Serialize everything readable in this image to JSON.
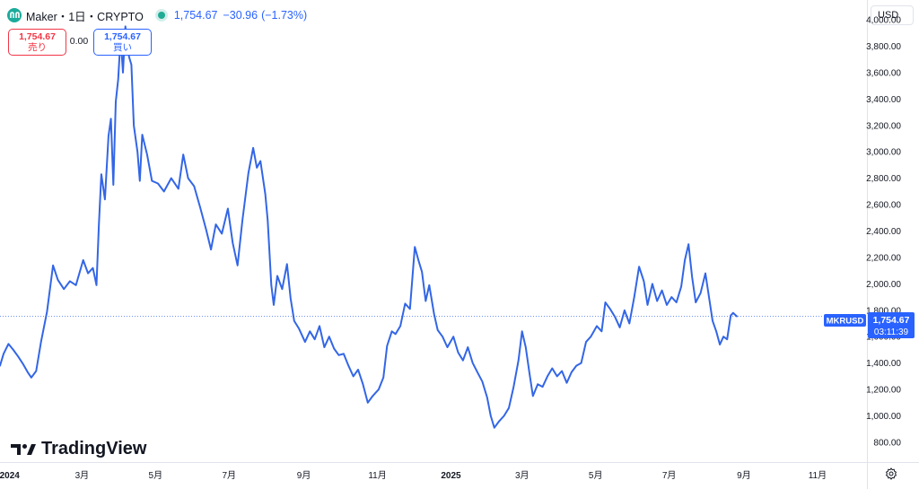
{
  "header": {
    "title": "Maker・1日・CRYPTO",
    "price": "1,754.67",
    "change": "−30.96",
    "change_pct": "(−1.73%)"
  },
  "trade": {
    "sell_price": "1,754.67",
    "sell_label": "売り",
    "spread": "0.00",
    "buy_price": "1,754.67",
    "buy_label": "買い"
  },
  "currency": "USD",
  "brand": "TradingView",
  "last_price_label": {
    "symbol": "MKRUSD",
    "price": "1,754.67",
    "countdown": "03:11:39"
  },
  "colors": {
    "line": "#3366e6",
    "accent": "#2962ff",
    "sell": "#f23645",
    "status": "#22ab94"
  },
  "chart_data": {
    "type": "line",
    "y_axis_position": "right",
    "ylim": [
      650,
      4150
    ],
    "xlim": [
      "2023-12-24",
      "2025-12-12"
    ],
    "y_ticks": [
      {
        "value": 800,
        "label": "800.00"
      },
      {
        "value": 1000,
        "label": "1,000.00"
      },
      {
        "value": 1200,
        "label": "1,200.00"
      },
      {
        "value": 1400,
        "label": "1,400.00"
      },
      {
        "value": 1600,
        "label": "1,600.00"
      },
      {
        "value": 1800,
        "label": "1,800.00"
      },
      {
        "value": 2000,
        "label": "2,000.00"
      },
      {
        "value": 2200,
        "label": "2,200.00"
      },
      {
        "value": 2400,
        "label": "2,400.00"
      },
      {
        "value": 2600,
        "label": "2,600.00"
      },
      {
        "value": 2800,
        "label": "2,800.00"
      },
      {
        "value": 3000,
        "label": "3,000.00"
      },
      {
        "value": 3200,
        "label": "3,200.00"
      },
      {
        "value": 3400,
        "label": "3,400.00"
      },
      {
        "value": 3600,
        "label": "3,600.00"
      },
      {
        "value": 3800,
        "label": "3,800.00"
      },
      {
        "value": 4000,
        "label": "4,000.00"
      }
    ],
    "x_ticks": [
      {
        "date": "2024-01-01",
        "label": "2024",
        "bold": true
      },
      {
        "date": "2024-03-01",
        "label": "3月"
      },
      {
        "date": "2024-05-01",
        "label": "5月"
      },
      {
        "date": "2024-07-01",
        "label": "7月"
      },
      {
        "date": "2024-09-01",
        "label": "9月"
      },
      {
        "date": "2024-11-01",
        "label": "11月"
      },
      {
        "date": "2025-01-01",
        "label": "2025",
        "bold": true
      },
      {
        "date": "2025-03-01",
        "label": "3月"
      },
      {
        "date": "2025-05-01",
        "label": "5月"
      },
      {
        "date": "2025-07-01",
        "label": "7月"
      },
      {
        "date": "2025-09-01",
        "label": "9月"
      },
      {
        "date": "2025-11-01",
        "label": "11月"
      }
    ],
    "last_value": 1754.67,
    "series": [
      {
        "values": [
          [
            "2023-12-24",
            1380
          ],
          [
            "2023-12-27",
            1470
          ],
          [
            "2023-12-31",
            1545
          ],
          [
            "2024-01-04",
            1500
          ],
          [
            "2024-01-08",
            1450
          ],
          [
            "2024-01-12",
            1395
          ],
          [
            "2024-01-16",
            1330
          ],
          [
            "2024-01-19",
            1290
          ],
          [
            "2024-01-23",
            1340
          ],
          [
            "2024-01-27",
            1560
          ],
          [
            "2024-02-01",
            1790
          ],
          [
            "2024-02-06",
            2140
          ],
          [
            "2024-02-10",
            2030
          ],
          [
            "2024-02-15",
            1960
          ],
          [
            "2024-02-20",
            2020
          ],
          [
            "2024-02-25",
            1990
          ],
          [
            "2024-03-02",
            2180
          ],
          [
            "2024-03-06",
            2080
          ],
          [
            "2024-03-10",
            2120
          ],
          [
            "2024-03-13",
            1990
          ],
          [
            "2024-03-15",
            2450
          ],
          [
            "2024-03-17",
            2830
          ],
          [
            "2024-03-20",
            2640
          ],
          [
            "2024-03-23",
            3120
          ],
          [
            "2024-03-25",
            3250
          ],
          [
            "2024-03-27",
            2750
          ],
          [
            "2024-03-29",
            3380
          ],
          [
            "2024-03-31",
            3550
          ],
          [
            "2024-04-02",
            3870
          ],
          [
            "2024-04-04",
            3600
          ],
          [
            "2024-04-06",
            3950
          ],
          [
            "2024-04-09",
            3720
          ],
          [
            "2024-04-11",
            3660
          ],
          [
            "2024-04-13",
            3200
          ],
          [
            "2024-04-16",
            3000
          ],
          [
            "2024-04-18",
            2780
          ],
          [
            "2024-04-20",
            3130
          ],
          [
            "2024-04-24",
            2980
          ],
          [
            "2024-04-28",
            2780
          ],
          [
            "2024-05-03",
            2760
          ],
          [
            "2024-05-08",
            2700
          ],
          [
            "2024-05-14",
            2800
          ],
          [
            "2024-05-20",
            2720
          ],
          [
            "2024-05-24",
            2980
          ],
          [
            "2024-05-28",
            2800
          ],
          [
            "2024-06-02",
            2740
          ],
          [
            "2024-06-07",
            2580
          ],
          [
            "2024-06-12",
            2410
          ],
          [
            "2024-06-16",
            2260
          ],
          [
            "2024-06-20",
            2450
          ],
          [
            "2024-06-25",
            2380
          ],
          [
            "2024-06-30",
            2570
          ],
          [
            "2024-07-04",
            2310
          ],
          [
            "2024-07-08",
            2140
          ],
          [
            "2024-07-12",
            2480
          ],
          [
            "2024-07-17",
            2840
          ],
          [
            "2024-07-21",
            3030
          ],
          [
            "2024-07-24",
            2880
          ],
          [
            "2024-07-27",
            2930
          ],
          [
            "2024-07-31",
            2680
          ],
          [
            "2024-08-02",
            2480
          ],
          [
            "2024-08-05",
            1990
          ],
          [
            "2024-08-07",
            1840
          ],
          [
            "2024-08-10",
            2060
          ],
          [
            "2024-08-14",
            1960
          ],
          [
            "2024-08-18",
            2150
          ],
          [
            "2024-08-21",
            1890
          ],
          [
            "2024-08-24",
            1720
          ],
          [
            "2024-08-28",
            1660
          ],
          [
            "2024-09-02",
            1560
          ],
          [
            "2024-09-06",
            1640
          ],
          [
            "2024-09-10",
            1580
          ],
          [
            "2024-09-14",
            1680
          ],
          [
            "2024-09-18",
            1520
          ],
          [
            "2024-09-22",
            1600
          ],
          [
            "2024-09-26",
            1510
          ],
          [
            "2024-09-30",
            1460
          ],
          [
            "2024-10-04",
            1470
          ],
          [
            "2024-10-08",
            1380
          ],
          [
            "2024-10-12",
            1300
          ],
          [
            "2024-10-16",
            1350
          ],
          [
            "2024-10-20",
            1240
          ],
          [
            "2024-10-24",
            1100
          ],
          [
            "2024-10-28",
            1150
          ],
          [
            "2024-11-02",
            1200
          ],
          [
            "2024-11-06",
            1290
          ],
          [
            "2024-11-09",
            1530
          ],
          [
            "2024-11-13",
            1640
          ],
          [
            "2024-11-16",
            1620
          ],
          [
            "2024-11-20",
            1680
          ],
          [
            "2024-11-24",
            1850
          ],
          [
            "2024-11-28",
            1810
          ],
          [
            "2024-12-02",
            2280
          ],
          [
            "2024-12-05",
            2180
          ],
          [
            "2024-12-08",
            2090
          ],
          [
            "2024-12-11",
            1870
          ],
          [
            "2024-12-14",
            1990
          ],
          [
            "2024-12-18",
            1770
          ],
          [
            "2024-12-21",
            1650
          ],
          [
            "2024-12-25",
            1600
          ],
          [
            "2024-12-29",
            1520
          ],
          [
            "2025-01-03",
            1600
          ],
          [
            "2025-01-07",
            1480
          ],
          [
            "2025-01-11",
            1420
          ],
          [
            "2025-01-15",
            1520
          ],
          [
            "2025-01-19",
            1400
          ],
          [
            "2025-01-23",
            1330
          ],
          [
            "2025-01-27",
            1260
          ],
          [
            "2025-01-31",
            1140
          ],
          [
            "2025-02-03",
            1000
          ],
          [
            "2025-02-06",
            910
          ],
          [
            "2025-02-10",
            960
          ],
          [
            "2025-02-14",
            1000
          ],
          [
            "2025-02-18",
            1060
          ],
          [
            "2025-02-22",
            1220
          ],
          [
            "2025-02-26",
            1420
          ],
          [
            "2025-03-01",
            1640
          ],
          [
            "2025-03-04",
            1520
          ],
          [
            "2025-03-07",
            1330
          ],
          [
            "2025-03-10",
            1150
          ],
          [
            "2025-03-14",
            1240
          ],
          [
            "2025-03-18",
            1220
          ],
          [
            "2025-03-22",
            1300
          ],
          [
            "2025-03-26",
            1360
          ],
          [
            "2025-03-30",
            1300
          ],
          [
            "2025-04-03",
            1340
          ],
          [
            "2025-04-07",
            1250
          ],
          [
            "2025-04-11",
            1330
          ],
          [
            "2025-04-15",
            1380
          ],
          [
            "2025-04-19",
            1400
          ],
          [
            "2025-04-23",
            1560
          ],
          [
            "2025-04-27",
            1600
          ],
          [
            "2025-05-02",
            1680
          ],
          [
            "2025-05-06",
            1640
          ],
          [
            "2025-05-09",
            1860
          ],
          [
            "2025-05-13",
            1810
          ],
          [
            "2025-05-17",
            1750
          ],
          [
            "2025-05-21",
            1670
          ],
          [
            "2025-05-25",
            1800
          ],
          [
            "2025-05-29",
            1700
          ],
          [
            "2025-06-02",
            1900
          ],
          [
            "2025-06-06",
            2130
          ],
          [
            "2025-06-10",
            2020
          ],
          [
            "2025-06-13",
            1840
          ],
          [
            "2025-06-17",
            2000
          ],
          [
            "2025-06-21",
            1870
          ],
          [
            "2025-06-25",
            1950
          ],
          [
            "2025-06-29",
            1840
          ],
          [
            "2025-07-03",
            1900
          ],
          [
            "2025-07-07",
            1860
          ],
          [
            "2025-07-11",
            1980
          ],
          [
            "2025-07-14",
            2180
          ],
          [
            "2025-07-17",
            2300
          ],
          [
            "2025-07-20",
            2050
          ],
          [
            "2025-07-23",
            1860
          ],
          [
            "2025-07-27",
            1930
          ],
          [
            "2025-07-31",
            2080
          ],
          [
            "2025-08-03",
            1900
          ],
          [
            "2025-08-06",
            1720
          ],
          [
            "2025-08-09",
            1640
          ],
          [
            "2025-08-12",
            1540
          ],
          [
            "2025-08-15",
            1600
          ],
          [
            "2025-08-18",
            1580
          ],
          [
            "2025-08-21",
            1760
          ],
          [
            "2025-08-23",
            1780
          ],
          [
            "2025-08-26",
            1754.67
          ]
        ]
      }
    ]
  }
}
